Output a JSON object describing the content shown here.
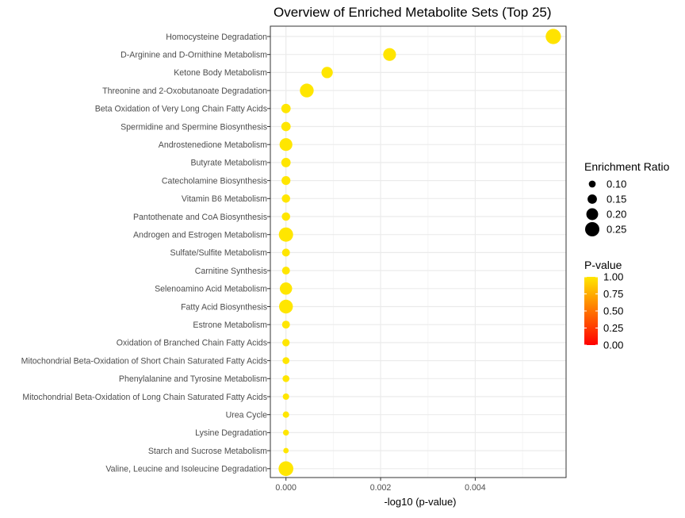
{
  "chart_data": {
    "type": "scatter",
    "title": "Overview of Enriched Metabolite Sets (Top 25)",
    "xlabel": "-log10 (p-value)",
    "ylabel": "",
    "x_ticks": [
      0,
      0.002,
      0.004
    ],
    "x_tick_labels": [
      "0.000",
      "0.002",
      "0.004"
    ],
    "xlim": [
      -0.00033,
      0.00592
    ],
    "grid": true,
    "legend_placement": "right",
    "categories": [
      "Homocysteine Degradation",
      "D-Arginine and D-Ornithine Metabolism",
      "Ketone Body Metabolism",
      "Threonine and 2-Oxobutanoate Degradation",
      "Beta Oxidation of Very Long Chain Fatty Acids",
      "Spermidine and Spermine Biosynthesis",
      "Androstenedione Metabolism",
      "Butyrate Metabolism",
      "Catecholamine Biosynthesis",
      "Vitamin B6 Metabolism",
      "Pantothenate and CoA Biosynthesis",
      "Androgen and Estrogen Metabolism",
      "Sulfate/Sulfite Metabolism",
      "Carnitine Synthesis",
      "Selenoamino Acid Metabolism",
      "Fatty Acid Biosynthesis",
      "Estrone Metabolism",
      "Oxidation of Branched Chain Fatty Acids",
      "Mitochondrial Beta-Oxidation of Short Chain Saturated Fatty Acids",
      "Phenylalanine and Tyrosine Metabolism",
      "Mitochondrial Beta-Oxidation of Long Chain Saturated Fatty Acids",
      "Urea Cycle",
      "Lysine Degradation",
      "Starch and Sucrose Metabolism",
      "Valine, Leucine and Isoleucine Degradation"
    ],
    "neg_log10_p": [
      0.00565,
      0.00219,
      0.00087,
      0.00044,
      0,
      0,
      0,
      0,
      0,
      0,
      0,
      0,
      0,
      0,
      0,
      0,
      0,
      0,
      0,
      0,
      0,
      0,
      0,
      0,
      0
    ],
    "enrichment_ratio": [
      0.27,
      0.22,
      0.19,
      0.24,
      0.15,
      0.15,
      0.22,
      0.15,
      0.14,
      0.13,
      0.13,
      0.25,
      0.12,
      0.12,
      0.21,
      0.24,
      0.12,
      0.11,
      0.1,
      0.1,
      0.09,
      0.09,
      0.08,
      0.07,
      0.26
    ],
    "p_value": [
      0.987,
      0.995,
      0.998,
      0.999,
      1,
      1,
      1,
      1,
      1,
      1,
      1,
      1,
      1,
      1,
      1,
      1,
      1,
      1,
      1,
      1,
      1,
      1,
      1,
      1,
      1
    ],
    "size_legend": {
      "title": "Enrichment Ratio",
      "values": [
        0.1,
        0.15,
        0.2,
        0.25
      ],
      "labels": [
        "0.10",
        "0.15",
        "0.20",
        "0.25"
      ]
    },
    "color_legend": {
      "title": "P-value",
      "values": [
        1,
        0.75,
        0.5,
        0.25,
        0
      ],
      "labels": [
        "1.00",
        "0.75",
        "0.50",
        "0.25",
        "0.00"
      ],
      "low_color": "#ff0000",
      "high_color": "#ffe600"
    },
    "colors": {
      "panel_border": "#333333",
      "grid_major": "#ebebeb",
      "grid_minor": "#f5f5f5",
      "axis_text": "#4d4d4d",
      "legend_dot": "#000000"
    }
  }
}
